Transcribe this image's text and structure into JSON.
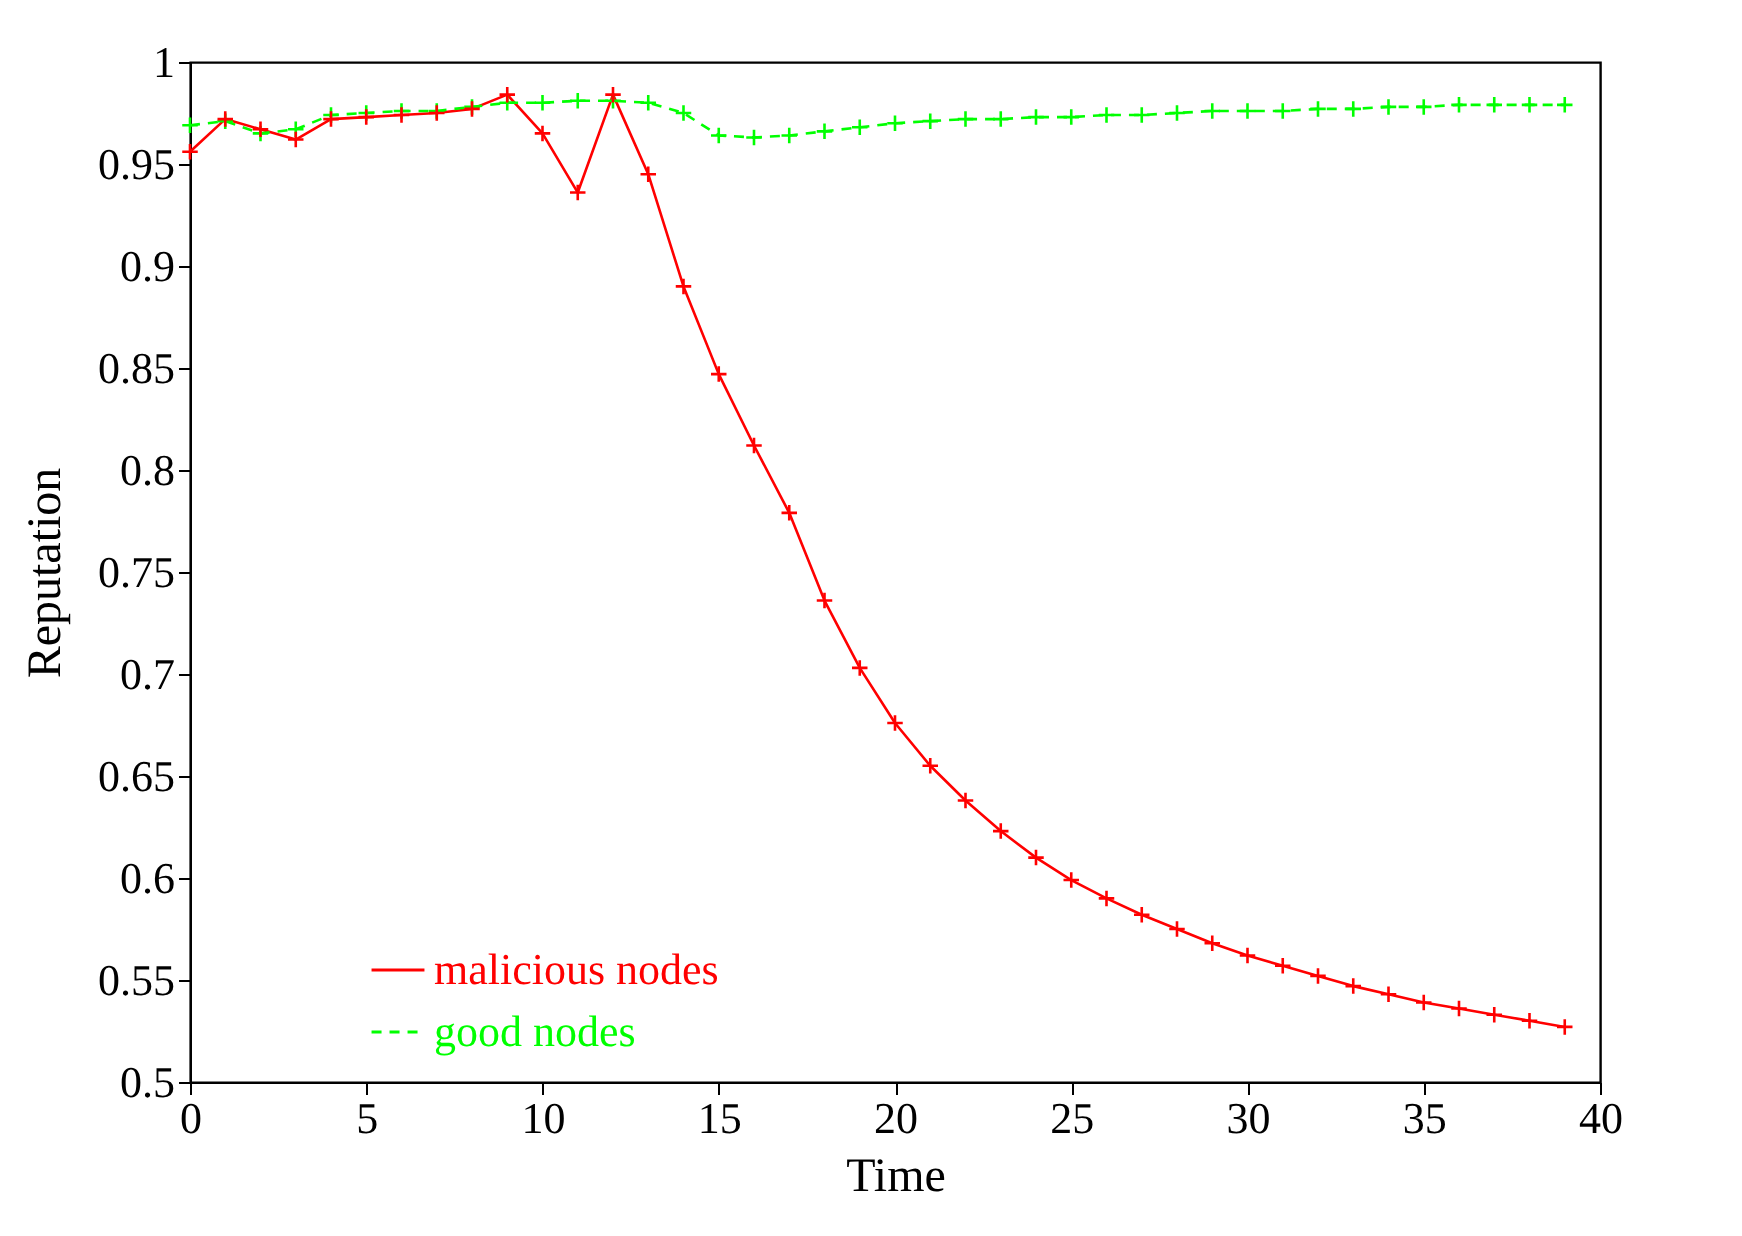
{
  "chart_data": {
    "type": "line",
    "xlabel": "Time",
    "ylabel": "Reputation",
    "x": [
      0,
      1,
      2,
      3,
      4,
      5,
      6,
      7,
      8,
      9,
      10,
      11,
      12,
      13,
      14,
      15,
      16,
      17,
      18,
      19,
      20,
      21,
      22,
      23,
      24,
      25,
      26,
      27,
      28,
      29,
      30,
      31,
      32,
      33,
      34,
      35,
      36,
      37,
      38,
      39
    ],
    "series": [
      {
        "name": "malicious nodes",
        "color": "#ff0000",
        "line_style": "solid",
        "values": [
          0.956,
          0.972,
          0.967,
          0.962,
          0.972,
          0.973,
          0.974,
          0.975,
          0.977,
          0.984,
          0.965,
          0.936,
          0.984,
          0.945,
          0.89,
          0.847,
          0.812,
          0.779,
          0.736,
          0.703,
          0.676,
          0.655,
          0.638,
          0.623,
          0.61,
          0.599,
          0.59,
          0.582,
          0.575,
          0.568,
          0.562,
          0.557,
          0.552,
          0.547,
          0.543,
          0.539,
          0.536,
          0.533,
          0.53,
          0.527
        ]
      },
      {
        "name": "good nodes",
        "color": "#00ff00",
        "line_style": "dashed",
        "values": [
          0.969,
          0.971,
          0.965,
          0.967,
          0.974,
          0.975,
          0.976,
          0.976,
          0.978,
          0.98,
          0.98,
          0.981,
          0.981,
          0.98,
          0.975,
          0.964,
          0.963,
          0.964,
          0.966,
          0.968,
          0.97,
          0.971,
          0.972,
          0.972,
          0.973,
          0.973,
          0.974,
          0.974,
          0.975,
          0.976,
          0.976,
          0.976,
          0.977,
          0.977,
          0.978,
          0.978,
          0.979,
          0.979,
          0.979,
          0.979
        ]
      }
    ],
    "xlim": [
      0,
      40
    ],
    "xticks": [
      0,
      5,
      10,
      15,
      20,
      25,
      30,
      35,
      40
    ],
    "ylim": [
      0.5,
      1
    ],
    "yticks": [
      0.5,
      0.55,
      0.6,
      0.65,
      0.7,
      0.75,
      0.8,
      0.85,
      0.9,
      0.95,
      1
    ],
    "marker": "cross",
    "legend": "bottom left",
    "grid": false
  }
}
